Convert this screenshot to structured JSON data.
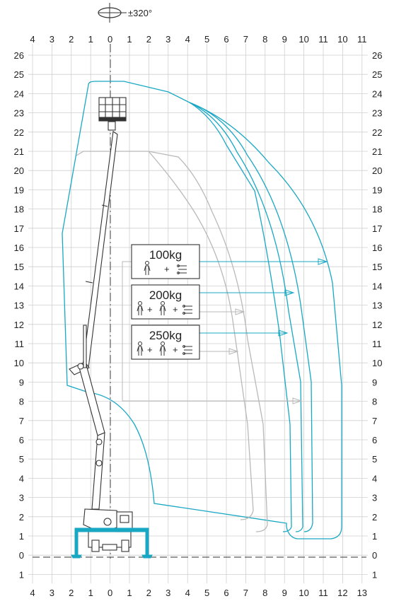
{
  "rotation": {
    "label": "±320°"
  },
  "axes": {
    "top_labels": [
      "4",
      "3",
      "2",
      "1",
      "0",
      "1",
      "2",
      "3",
      "4",
      "5",
      "6",
      "7",
      "8",
      "9",
      "10",
      "11",
      "10",
      "11"
    ],
    "bottom_labels": [
      "4",
      "3",
      "2",
      "1",
      "0",
      "1",
      "2",
      "3",
      "4",
      "5",
      "6",
      "7",
      "8",
      "9",
      "10",
      "11",
      "12",
      "13"
    ],
    "y_labels": [
      "26",
      "25",
      "24",
      "23",
      "22",
      "21",
      "20",
      "19",
      "18",
      "17",
      "16",
      "15",
      "14",
      "13",
      "12",
      "11",
      "10",
      "9",
      "8",
      "7",
      "6",
      "5",
      "4",
      "3",
      "2",
      "1",
      "0",
      "1"
    ]
  },
  "loads": [
    {
      "label": "100kg",
      "persons": 1,
      "reach_m": 11
    },
    {
      "label": "200kg",
      "persons": 2,
      "reach_m": 9.5
    },
    {
      "label": "250kg",
      "persons": 2,
      "reach_m": 9
    }
  ],
  "colors": {
    "envelope": "#19a8c4",
    "reduced": "#b9b9b9",
    "grid": "#cfcfcf",
    "machine": "#333333",
    "outrigger": "#19a8c4"
  },
  "chart_data": {
    "type": "working-envelope",
    "xlim": [
      -4,
      13
    ],
    "ylim": [
      -1,
      26
    ],
    "max_height_m": 24.5,
    "rotation_deg": 320,
    "grid": true
  }
}
